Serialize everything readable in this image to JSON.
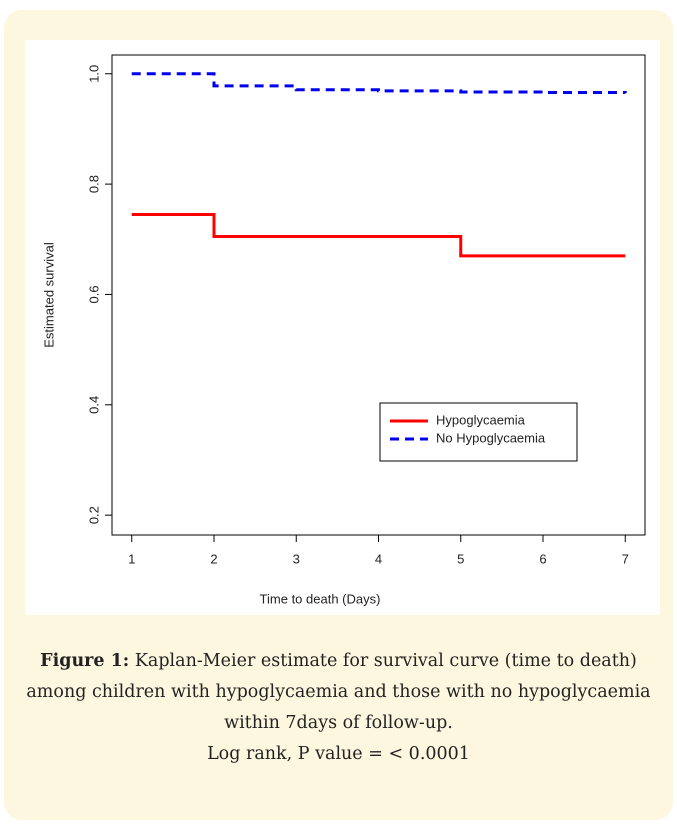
{
  "chart_data": {
    "type": "step",
    "x_label": "Time to death (Days)",
    "y_label": "Estimated survival",
    "x": [
      1,
      2,
      3,
      4,
      5,
      6,
      7
    ],
    "series": [
      {
        "name": "Hypoglycaemia",
        "color": "#ff0000",
        "dashed": false,
        "values": [
          0.745,
          0.705,
          0.705,
          0.705,
          0.67,
          0.67,
          0.67
        ]
      },
      {
        "name": "No Hypoglycaemia",
        "color": "#0000ee",
        "dashed": true,
        "values": [
          1.0,
          0.978,
          0.971,
          0.969,
          0.967,
          0.966,
          0.965
        ]
      }
    ],
    "xlim": [
      0.76,
      7.24
    ],
    "ylim": [
      0.164,
      1.034
    ],
    "xticks": [
      1,
      2,
      3,
      4,
      5,
      6,
      7
    ],
    "yticks": [
      0.2,
      0.4,
      0.6,
      0.8,
      {
        "value": 1,
        "label": "1.0"
      }
    ],
    "legend_position": "lower-right"
  },
  "caption": {
    "label": "Figure 1:",
    "text": "Kaplan-Meier estimate for survival curve (time to death) among children with hypoglycaemia and those with no hypoglycaemia within 7days of follow-up.",
    "note": "Log rank, P value = < 0.0001"
  }
}
